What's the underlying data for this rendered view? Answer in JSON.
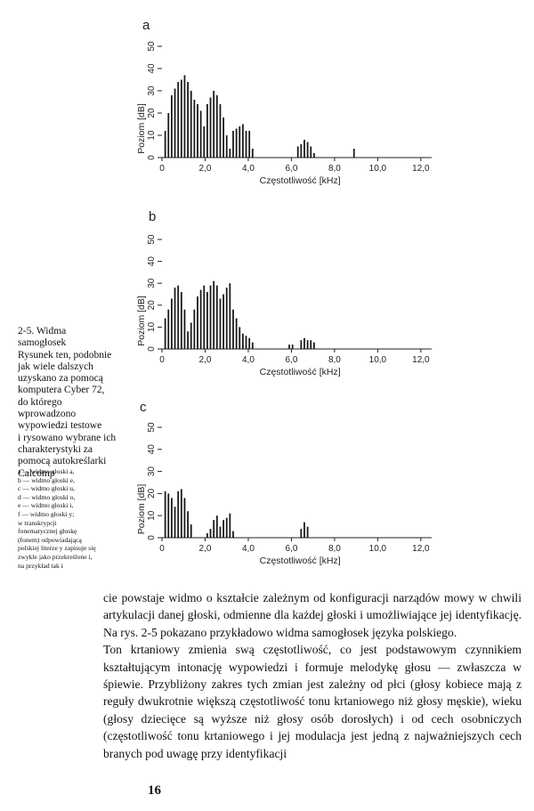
{
  "figure": {
    "panels": [
      {
        "letter": "a",
        "ylabel": "Poziom [dB]",
        "xlabel": "Częstotliwość [kHz]",
        "yticks": [
          "0",
          "10",
          "20",
          "30",
          "40",
          "50"
        ],
        "xticks": [
          "0",
          "2,0",
          "4,0",
          "6,0",
          "8,0",
          "10,0",
          "12,0"
        ]
      },
      {
        "letter": "b",
        "ylabel": "Poziom [dB]",
        "xlabel": "Częstotliwość [kHz]",
        "yticks": [
          "0",
          "10",
          "20",
          "30",
          "40",
          "50"
        ],
        "xticks": [
          "0",
          "2,0",
          "4,0",
          "6,0",
          "8,0",
          "10,0",
          "12,0"
        ]
      },
      {
        "letter": "c",
        "ylabel": "Poziom [dB]",
        "xlabel": "Częstotliwość [kHz]",
        "yticks": [
          "0",
          "10",
          "20",
          "30",
          "40",
          "50"
        ],
        "xticks": [
          "0",
          "2,0",
          "4,0",
          "6,0",
          "8,0",
          "10,0",
          "12,0"
        ]
      }
    ]
  },
  "chart_data": [
    {
      "type": "bar",
      "panel": "a",
      "xlabel": "Częstotliwość [kHz]",
      "ylabel": "Poziom [dB]",
      "xlim": [
        0,
        12.5
      ],
      "ylim": [
        0,
        50
      ],
      "x": [
        0.15,
        0.3,
        0.45,
        0.6,
        0.75,
        0.9,
        1.05,
        1.2,
        1.35,
        1.5,
        1.65,
        1.8,
        1.95,
        2.1,
        2.25,
        2.4,
        2.55,
        2.7,
        2.85,
        3.0,
        3.15,
        3.3,
        3.45,
        3.6,
        3.75,
        3.9,
        4.05,
        4.2,
        6.3,
        6.45,
        6.6,
        6.75,
        6.9,
        7.05,
        8.9
      ],
      "y": [
        12,
        20,
        28,
        31,
        34,
        35,
        37,
        34,
        30,
        26,
        24,
        21,
        14,
        24,
        27,
        30,
        28,
        24,
        18,
        10,
        4,
        12,
        13,
        14,
        15,
        12,
        12,
        4,
        5,
        6,
        8,
        7,
        5,
        2,
        4
      ]
    },
    {
      "type": "bar",
      "panel": "b",
      "xlabel": "Częstotliwość [kHz]",
      "ylabel": "Poziom [dB]",
      "xlim": [
        0,
        12.5
      ],
      "ylim": [
        0,
        50
      ],
      "x": [
        0.15,
        0.3,
        0.45,
        0.6,
        0.75,
        0.9,
        1.05,
        1.2,
        1.35,
        1.5,
        1.65,
        1.8,
        1.95,
        2.1,
        2.25,
        2.4,
        2.55,
        2.7,
        2.85,
        3.0,
        3.15,
        3.3,
        3.45,
        3.6,
        3.75,
        3.9,
        4.05,
        4.2,
        5.9,
        6.05,
        6.45,
        6.6,
        6.75,
        6.9,
        7.05
      ],
      "y": [
        14,
        18,
        23,
        28,
        29,
        26,
        18,
        8,
        12,
        18,
        24,
        27,
        29,
        26,
        29,
        31,
        29,
        23,
        25,
        28,
        30,
        18,
        14,
        10,
        7,
        6,
        5,
        3,
        2,
        2,
        4,
        5,
        4,
        4,
        3
      ]
    },
    {
      "type": "bar",
      "panel": "c",
      "xlabel": "Częstotliwość [kHz]",
      "ylabel": "Poziom [dB]",
      "xlim": [
        0,
        12.5
      ],
      "ylim": [
        0,
        50
      ],
      "x": [
        0.15,
        0.3,
        0.45,
        0.6,
        0.75,
        0.9,
        1.05,
        1.2,
        1.35,
        2.1,
        2.25,
        2.4,
        2.55,
        2.7,
        2.85,
        3.0,
        3.15,
        3.3,
        6.45,
        6.6,
        6.75
      ],
      "y": [
        21,
        20,
        18,
        14,
        21,
        22,
        18,
        12,
        6,
        2,
        4,
        8,
        10,
        5,
        8,
        9,
        11,
        3,
        4,
        7,
        5
      ]
    }
  ],
  "caption": {
    "lines": [
      "2-5. Widma",
      "samogłosek",
      "Rysunek ten, podobnie",
      "jak wiele dalszych",
      "uzyskano za pomocą",
      "komputera Cyber 72,",
      "do którego",
      "wprowadzono",
      "wypowiedzi testowe",
      "i rysowano wybrane ich",
      "charakterystyki za",
      "pomocą autokreślarki",
      "Calcomp"
    ],
    "legend": [
      "a — widmo głoski a,",
      "b — widmo głoski e,",
      "c — widmo głoski u,",
      "d — widmo głoski o,",
      "e — widmo głoski i,",
      "f — widmo głoski y;",
      "w transkrypcji",
      "fonematycznej głoskę",
      "(fonem) odpowiadającą",
      "polskiej literze y zapisuje się",
      "zwykle jako przekreślone i,",
      "na przykład tak ɨ"
    ]
  },
  "body": {
    "paragraph1": "cie powstaje widmo o kształcie zależnym od konfiguracji narządów mowy w chwili artykulacji danej głoski, odmienne dla każdej głoski i umożliwiające jej identyfikację. Na rys. 2-5 pokazano przykładowo widma samogłosek języka polskiego.",
    "paragraph2": "Ton krtaniowy zmienia swą częstotliwość, co jest podstawowym czynnikiem kształtującym intonację wypowiedzi i formuje melodykę głosu — zwłaszcza w śpiewie. Przybliżony zakres tych zmian jest zależny od płci (głosy kobiece mają z reguły dwukrotnie większą częstotliwość tonu krtaniowego niż głosy męskie), wieku (głosy dziecięce są wyższe niż głosy osób dorosłych) i od cech osobniczych (częstotliwość tonu krtaniowego i jej modulacja jest jedną z najważniejszych cech branych pod uwagę przy identyfikacji"
  },
  "page_number": "16"
}
